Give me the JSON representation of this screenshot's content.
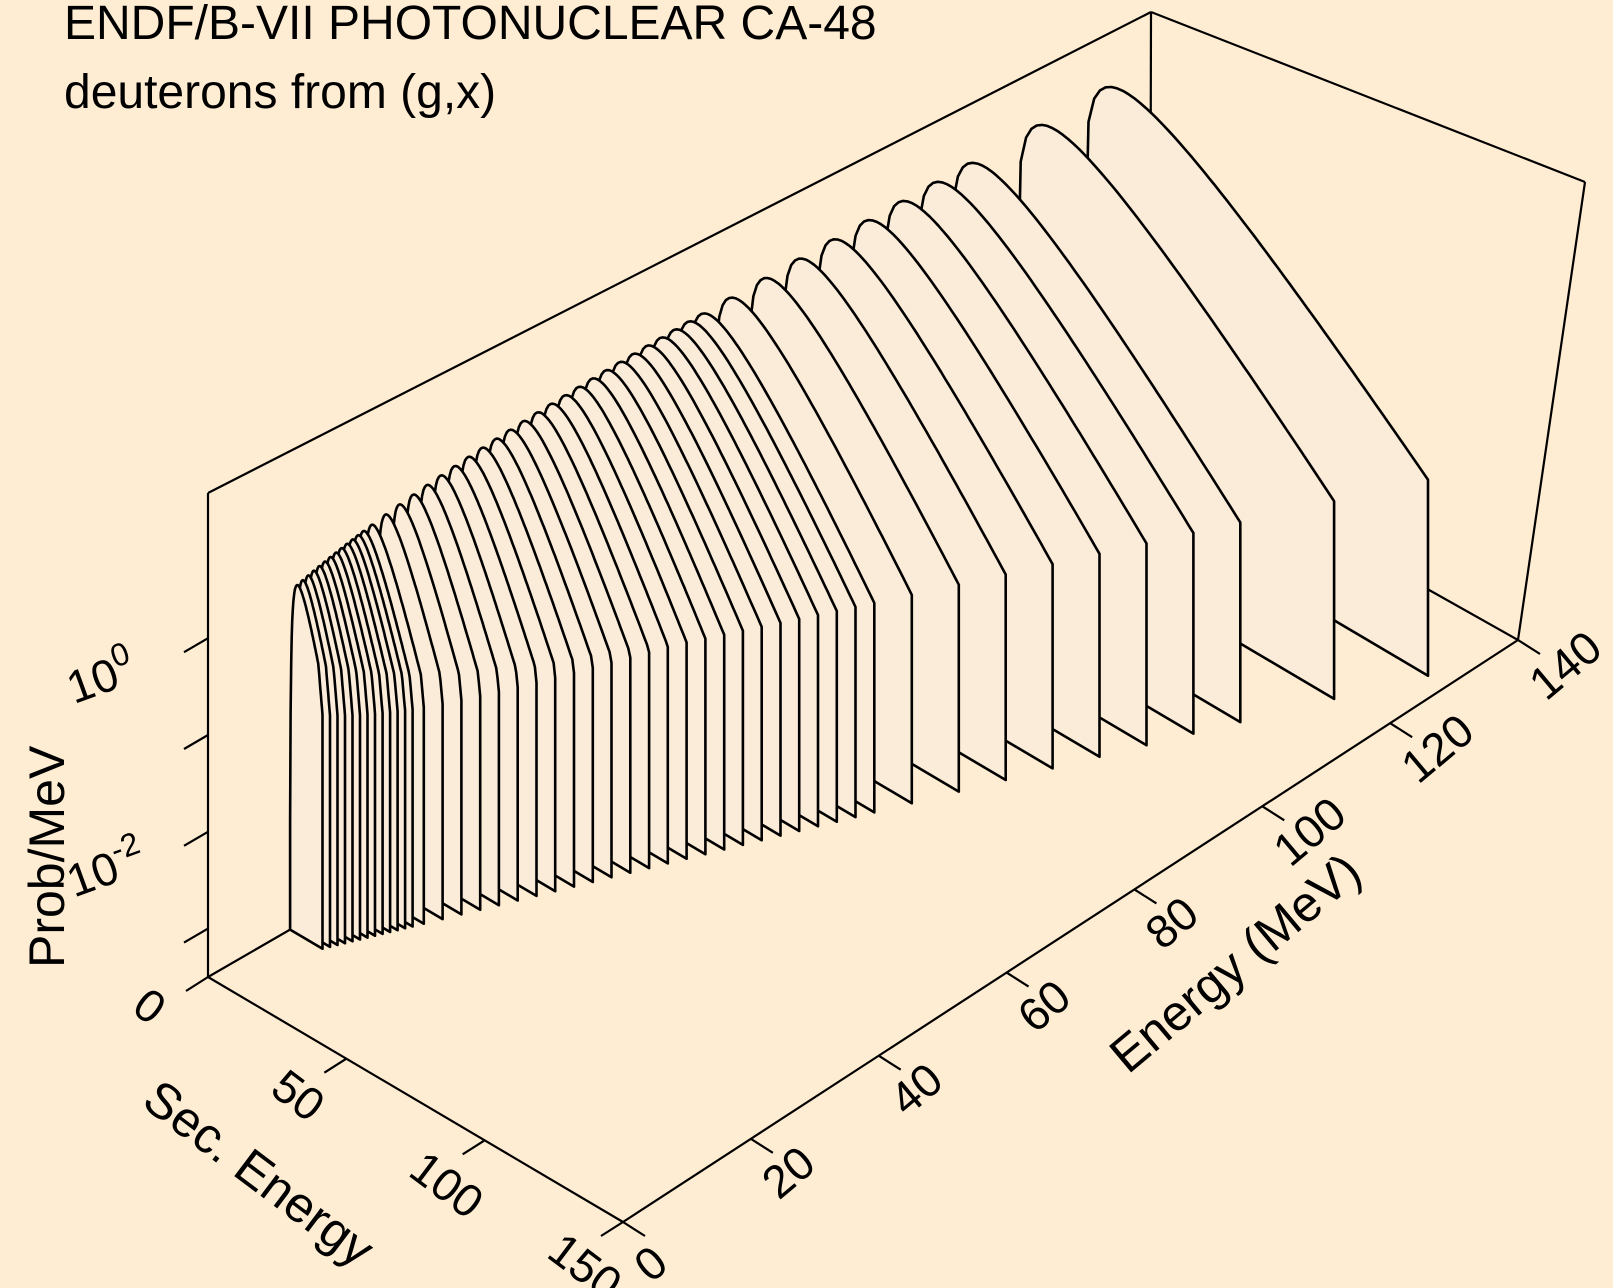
{
  "chart_data": {
    "type": "surface",
    "title": "ENDF/B-VII PHOTONUCLEAR CA-48",
    "subtitle": "deuterons from (g,x)",
    "xlabel": "Sec. Energy",
    "ylabel": "Energy (MeV)",
    "zlabel": "Prob/MeV",
    "z_scale": "log",
    "x_ticks": [
      "0",
      "50",
      "100",
      "150"
    ],
    "y_ticks": [
      "0",
      "20",
      "40",
      "60",
      "80",
      "100",
      "120",
      "140"
    ],
    "z_ticks": [
      {
        "base": "10",
        "exp": "0"
      },
      {
        "base": "10",
        "exp": "-2"
      }
    ],
    "xlim": [
      0,
      150
    ],
    "ylim": [
      0,
      140
    ],
    "zlim_log10": [
      -3.5,
      1.5
    ],
    "incident_energies": [
      12.2,
      13.0,
      13.8,
      14.6,
      15.4,
      16.2,
      17.0,
      17.8,
      18.6,
      19.4,
      20.2,
      21.0,
      21.8,
      23.0,
      25.0,
      27.0,
      29.0,
      31.0,
      33.0,
      35.0,
      37.0,
      39.0,
      41.0,
      43.0,
      45.0,
      47.0,
      49.0,
      51.0,
      53.0,
      55.0,
      57.0,
      59.0,
      61.0,
      63.0,
      65.0,
      67.0,
      69.0,
      71.0,
      75.0,
      80.0,
      85.0,
      90.0,
      95.0,
      100.0,
      105.0,
      110.0,
      120.0,
      130.0
    ],
    "spectrum_shape_log10": {
      "sec_energy_points": [
        0,
        2,
        5,
        10,
        20,
        40,
        60,
        80,
        100,
        120,
        140
      ],
      "note": ""
    }
  }
}
